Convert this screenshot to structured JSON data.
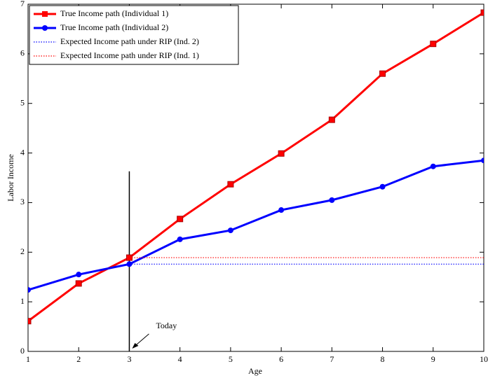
{
  "chart_data": {
    "type": "line",
    "x_label": "Age",
    "y_label": "Labor Income",
    "x": [
      1,
      2,
      3,
      4,
      5,
      6,
      7,
      8,
      9,
      10
    ],
    "xlim": [
      1,
      10
    ],
    "xticks": [
      1,
      2,
      3,
      4,
      5,
      6,
      7,
      8,
      9,
      10
    ],
    "ylim": [
      0,
      7
    ],
    "yticks": [
      0,
      1,
      2,
      3,
      4,
      5,
      6,
      7
    ],
    "legend_position": "upper-left",
    "series": [
      {
        "name": "True Income path (Individual 1)",
        "color": "#ff0000",
        "style": "solid",
        "marker": "square",
        "values": [
          0.61,
          1.37,
          1.89,
          2.67,
          3.37,
          3.99,
          4.67,
          5.6,
          6.2,
          6.83
        ]
      },
      {
        "name": "True Income path (Individual 2)",
        "color": "#0000ff",
        "style": "solid",
        "marker": "circle",
        "values": [
          1.24,
          1.55,
          1.76,
          2.26,
          2.44,
          2.85,
          3.05,
          3.32,
          3.73,
          3.85
        ]
      },
      {
        "name": "Expected Income path under RIP (Ind. 2)",
        "color": "#0000ff",
        "style": "dotted",
        "marker": "none",
        "values": [
          null,
          null,
          1.76,
          1.76,
          1.76,
          1.76,
          1.76,
          1.76,
          1.76,
          1.76
        ]
      },
      {
        "name": "Expected Income path under RIP (Ind. 1)",
        "color": "#ff0000",
        "style": "dotted",
        "marker": "none",
        "values": [
          null,
          null,
          1.89,
          1.89,
          1.89,
          1.89,
          1.89,
          1.89,
          1.89,
          1.89
        ]
      }
    ],
    "annotation": {
      "text": "Today",
      "x": 3,
      "line_top": 3.63
    }
  }
}
